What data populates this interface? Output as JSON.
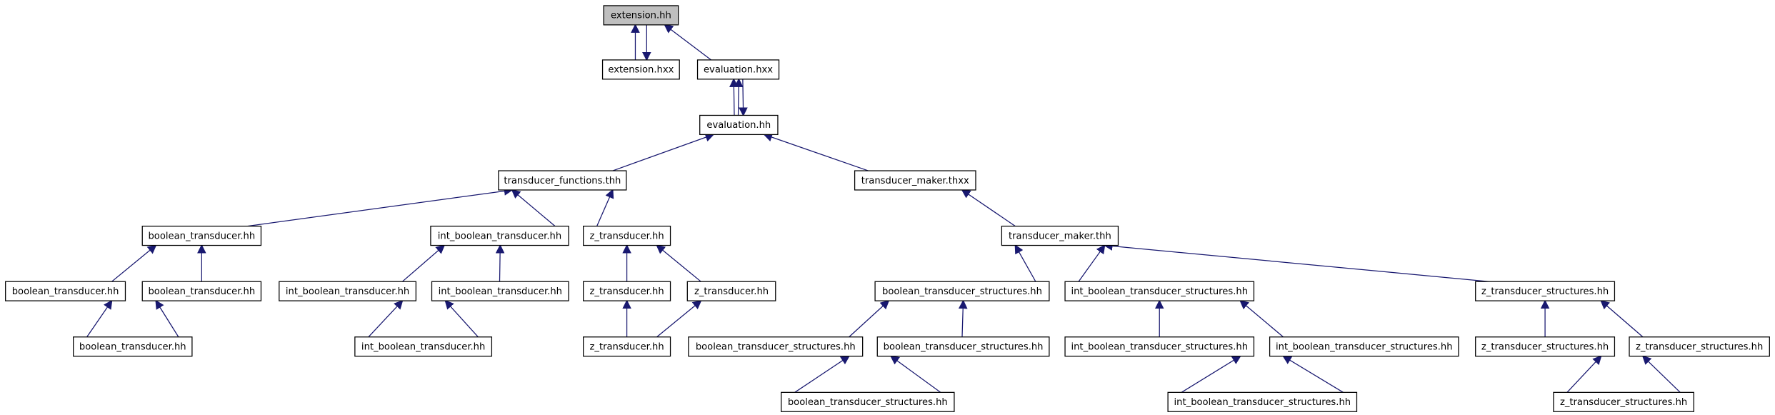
{
  "nodes": [
    "extension.hh",
    "extension.hxx",
    "evaluation.hxx",
    "evaluation.hh",
    "transducer_functions.thh",
    "transducer_maker.thxx",
    "boolean_transducer.hh",
    "int_boolean_transducer.hh",
    "z_transducer.hh",
    "transducer_maker.thh",
    "boolean_transducer.hh",
    "boolean_transducer.hh",
    "int_boolean_transducer.hh",
    "int_boolean_transducer.hh",
    "z_transducer.hh",
    "z_transducer.hh",
    "boolean_transducer_structures.hh",
    "int_boolean_transducer_structures.hh",
    "z_transducer_structures.hh",
    "boolean_transducer.hh",
    "int_boolean_transducer.hh",
    "z_transducer.hh",
    "boolean_transducer_structures.hh",
    "boolean_transducer_structures.hh",
    "int_boolean_transducer_structures.hh",
    "int_boolean_transducer_structures.hh",
    "z_transducer_structures.hh",
    "z_transducer_structures.hh",
    "boolean_transducer_structures.hh",
    "int_boolean_transducer_structures.hh",
    "z_transducer_structures.hh"
  ]
}
